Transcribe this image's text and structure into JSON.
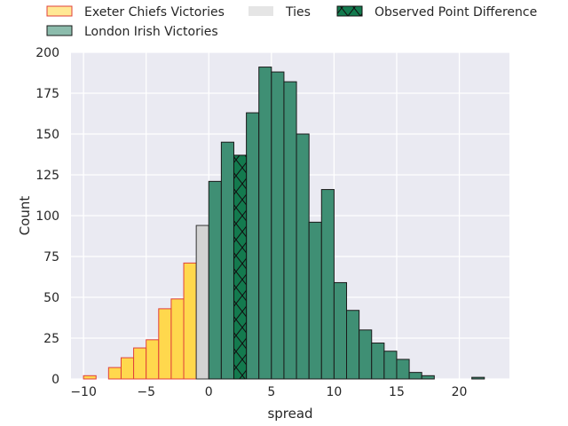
{
  "chart_data": {
    "type": "bar",
    "xlabel": "spread",
    "ylabel": "Count",
    "xlim": [
      -11,
      24
    ],
    "ylim": [
      0,
      200
    ],
    "grid": true,
    "legend_position": "top",
    "bin_width": 1,
    "xticks": [
      -10,
      -5,
      0,
      5,
      10,
      15,
      20
    ],
    "yticks": [
      0,
      25,
      50,
      75,
      100,
      125,
      150,
      175,
      200
    ],
    "observed_point_difference": 3,
    "series": [
      {
        "name": "Exeter Chiefs Victories",
        "color": "#ffd84d",
        "edge_color": "#e0403a",
        "bins": [
          {
            "x": -9.5,
            "count": 2
          },
          {
            "x": -7.5,
            "count": 7
          },
          {
            "x": -6.5,
            "count": 13
          },
          {
            "x": -5.5,
            "count": 19
          },
          {
            "x": -4.5,
            "count": 24
          },
          {
            "x": -3.5,
            "count": 43
          },
          {
            "x": -2.5,
            "count": 49
          },
          {
            "x": -1.5,
            "count": 71
          }
        ]
      },
      {
        "name": "Ties",
        "color": "#d3d3d3",
        "edge_color": "#333333",
        "bins": [
          {
            "x": -0.5,
            "count": 94
          }
        ]
      },
      {
        "name": "London Irish Victories",
        "color": "#3f8f74",
        "edge_color": "#1a1a1a",
        "bins": [
          {
            "x": 0.5,
            "count": 121
          },
          {
            "x": 1.5,
            "count": 145
          },
          {
            "x": 3.5,
            "count": 163
          },
          {
            "x": 4.5,
            "count": 191
          },
          {
            "x": 5.5,
            "count": 188
          },
          {
            "x": 6.5,
            "count": 182
          },
          {
            "x": 7.5,
            "count": 150
          },
          {
            "x": 8.5,
            "count": 96
          },
          {
            "x": 9.5,
            "count": 116
          },
          {
            "x": 10.5,
            "count": 59
          },
          {
            "x": 11.5,
            "count": 42
          },
          {
            "x": 12.5,
            "count": 30
          },
          {
            "x": 13.5,
            "count": 22
          },
          {
            "x": 14.5,
            "count": 17
          },
          {
            "x": 15.5,
            "count": 12
          },
          {
            "x": 16.5,
            "count": 4
          },
          {
            "x": 17.5,
            "count": 2
          },
          {
            "x": 21.5,
            "count": 1
          }
        ]
      },
      {
        "name": "Observed Point Difference",
        "color": "#137a4e",
        "edge_color": "#111111",
        "hatch": "x",
        "bins": [
          {
            "x": 2.5,
            "count": 137
          }
        ]
      }
    ],
    "legend": [
      {
        "label": "Exeter Chiefs Victories",
        "series": 0
      },
      {
        "label": "Ties",
        "series": 1
      },
      {
        "label": "Observed Point Difference",
        "series": 3
      },
      {
        "label": "London Irish Victories",
        "series": 2
      }
    ]
  }
}
